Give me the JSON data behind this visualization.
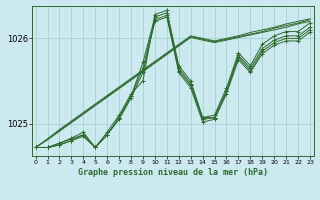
{
  "title": "Graphe pression niveau de la mer (hPa)",
  "bg_color": "#cde9f0",
  "grid_color": "#9ecfcc",
  "line_color": "#2d6a2d",
  "ylim": [
    1024.62,
    1026.38
  ],
  "xlim": [
    -0.3,
    23.3
  ],
  "yticks": [
    1025,
    1026
  ],
  "xticks": [
    0,
    1,
    2,
    3,
    4,
    5,
    6,
    7,
    8,
    9,
    10,
    11,
    12,
    13,
    14,
    15,
    16,
    17,
    18,
    19,
    20,
    21,
    22,
    23
  ],
  "series": [
    [
      1024.72,
      1024.72,
      1024.75,
      1024.8,
      1024.85,
      1024.72,
      1024.87,
      1025.05,
      1025.3,
      1025.6,
      1026.2,
      1026.25,
      1025.6,
      1025.42,
      1025.02,
      1025.05,
      1025.35,
      1025.75,
      1025.6,
      1025.82,
      1025.92,
      1025.97,
      1025.97,
      1026.07
    ],
    [
      1024.72,
      1024.72,
      1024.75,
      1024.8,
      1024.87,
      1024.72,
      1024.87,
      1025.07,
      1025.32,
      1025.65,
      1026.22,
      1026.27,
      1025.62,
      1025.45,
      1025.05,
      1025.07,
      1025.38,
      1025.78,
      1025.62,
      1025.85,
      1025.95,
      1026.0,
      1026.0,
      1026.1
    ],
    [
      1024.72,
      1024.72,
      1024.77,
      1024.82,
      1024.87,
      1024.72,
      1024.87,
      1025.07,
      1025.32,
      1025.72,
      1026.25,
      1026.3,
      1025.65,
      1025.47,
      1025.07,
      1025.07,
      1025.38,
      1025.8,
      1025.65,
      1025.88,
      1025.98,
      1026.03,
      1026.03,
      1026.13
    ],
    [
      1024.72,
      1024.72,
      1024.77,
      1024.83,
      1024.9,
      1024.72,
      1024.9,
      1025.1,
      1025.35,
      1025.5,
      1026.28,
      1026.33,
      1025.68,
      1025.5,
      1025.07,
      1025.1,
      1025.42,
      1025.83,
      1025.68,
      1025.93,
      1026.03,
      1026.08,
      1026.08,
      1026.18
    ]
  ],
  "linear_series": [
    [
      1024.72,
      1024.82,
      1024.93,
      1025.03,
      1025.13,
      1025.23,
      1025.33,
      1025.43,
      1025.53,
      1025.63,
      1025.73,
      1025.83,
      1025.93,
      1026.03,
      1026.0,
      1025.97,
      1026.0,
      1026.03,
      1026.07,
      1026.1,
      1026.13,
      1026.17,
      1026.2,
      1026.23
    ],
    [
      1024.72,
      1024.82,
      1024.92,
      1025.02,
      1025.12,
      1025.22,
      1025.32,
      1025.42,
      1025.52,
      1025.62,
      1025.72,
      1025.82,
      1025.92,
      1026.02,
      1025.99,
      1025.96,
      1025.99,
      1026.02,
      1026.05,
      1026.08,
      1026.12,
      1026.15,
      1026.18,
      1026.22
    ],
    [
      1024.72,
      1024.81,
      1024.91,
      1025.01,
      1025.11,
      1025.21,
      1025.31,
      1025.41,
      1025.51,
      1025.61,
      1025.71,
      1025.81,
      1025.91,
      1026.01,
      1025.98,
      1025.95,
      1025.98,
      1026.01,
      1026.04,
      1026.07,
      1026.1,
      1026.13,
      1026.17,
      1026.2
    ]
  ]
}
